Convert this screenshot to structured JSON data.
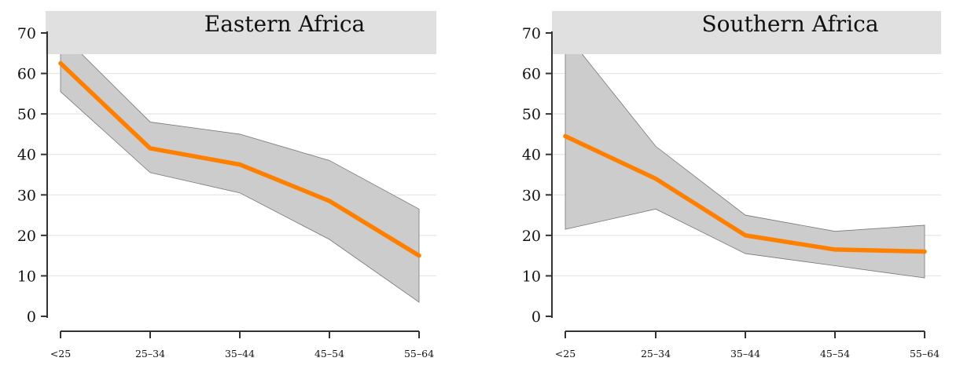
{
  "chart_data": [
    {
      "type": "line",
      "title": "Eastern Africa",
      "x": [
        "<25",
        "25–34",
        "35–44",
        "45–54",
        "55–64"
      ],
      "series": [
        {
          "values": [
            62.5,
            41.5,
            37.5,
            28.5,
            15.0
          ],
          "lower": [
            55.5,
            35.5,
            30.5,
            19.0,
            3.5
          ],
          "upper": [
            70.0,
            48.0,
            45.0,
            38.5,
            26.5
          ]
        }
      ],
      "yticks": [
        0,
        10,
        20,
        30,
        40,
        50,
        60,
        70
      ],
      "ylim": [
        0,
        70
      ],
      "grid": true,
      "colors": {
        "line": "#ff7f00",
        "band": "#cccccc",
        "title_box": "#e0e0e0"
      }
    },
    {
      "type": "line",
      "title": "Southern Africa",
      "x": [
        "<25",
        "25–34",
        "35–44",
        "45–54",
        "55–64"
      ],
      "series": [
        {
          "values": [
            44.5,
            34.0,
            20.0,
            16.5,
            16.0
          ],
          "lower": [
            21.5,
            26.5,
            15.5,
            12.5,
            9.5
          ],
          "upper": [
            70.0,
            42.0,
            25.0,
            21.0,
            22.5
          ]
        }
      ],
      "yticks": [
        0,
        10,
        20,
        30,
        40,
        50,
        60,
        70
      ],
      "ylim": [
        0,
        70
      ],
      "grid": true,
      "colors": {
        "line": "#ff7f00",
        "band": "#cccccc",
        "title_box": "#e0e0e0"
      }
    }
  ]
}
